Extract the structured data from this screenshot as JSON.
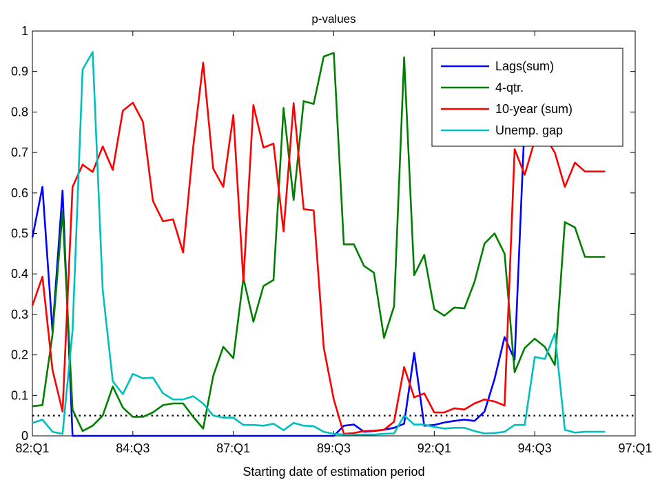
{
  "chart_data": {
    "type": "line",
    "title": "p-values",
    "xlabel": "Starting date of estimation period",
    "ylabel": "",
    "x_tick_labels": [
      "82:Q1",
      "84:Q3",
      "87:Q1",
      "89:Q3",
      "92:Q1",
      "94:Q3",
      "97:Q1"
    ],
    "x_tick_values": [
      0,
      10,
      20,
      30,
      40,
      50,
      60
    ],
    "xlim": [
      0,
      60
    ],
    "y_tick_labels": [
      "0",
      "0.1",
      "0.2",
      "0.3",
      "0.4",
      "0.5",
      "0.6",
      "0.7",
      "0.8",
      "0.9",
      "1"
    ],
    "ylim": [
      0,
      1
    ],
    "grid": false,
    "legend_position": "top-right",
    "reference_line": {
      "y": 0.05,
      "style": "dotted",
      "color": "#000000"
    },
    "series": [
      {
        "name": "Lags(sum)",
        "color": "#0000ff",
        "x": [
          0,
          1,
          2,
          3,
          4,
          5,
          6,
          7,
          8,
          9,
          10,
          11,
          12,
          13,
          14,
          15,
          16,
          17,
          18,
          19,
          20,
          21,
          22,
          23,
          24,
          25,
          26,
          27,
          28,
          29,
          30,
          31,
          32,
          33,
          34,
          35,
          36,
          37,
          38,
          39,
          40,
          41,
          42,
          43,
          44,
          45,
          46,
          47,
          48,
          49,
          50,
          51,
          52,
          53,
          54,
          55,
          56,
          57
        ],
        "values": [
          0.49,
          0.615,
          0.258,
          0.606,
          0,
          0,
          0,
          0,
          0,
          0,
          0,
          0,
          0,
          0,
          0,
          0,
          0,
          0,
          0,
          0,
          0,
          0,
          0,
          0,
          0,
          0,
          0,
          0,
          0,
          0,
          0,
          0.025,
          0.028,
          0.01,
          0.012,
          0.015,
          0.02,
          0.03,
          0.205,
          0.025,
          0.027,
          0.033,
          0.037,
          0.04,
          0.037,
          0.06,
          0.14,
          0.244,
          0.188,
          0.78,
          0.75,
          0.76,
          0.76,
          0.75,
          0.72,
          0.73,
          0.73,
          0.73
        ]
      },
      {
        "name": "4-qtr.",
        "color": "#007f00",
        "x": [
          0,
          1,
          2,
          3,
          4,
          5,
          6,
          7,
          8,
          9,
          10,
          11,
          12,
          13,
          14,
          15,
          16,
          17,
          18,
          19,
          20,
          21,
          22,
          23,
          24,
          25,
          26,
          27,
          28,
          29,
          30,
          31,
          32,
          33,
          34,
          35,
          36,
          37,
          38,
          39,
          40,
          41,
          42,
          43,
          44,
          45,
          46,
          47,
          48,
          49,
          50,
          51,
          52,
          53,
          54,
          55,
          56,
          57
        ],
        "values": [
          0.073,
          0.076,
          0.25,
          0.555,
          0.065,
          0.012,
          0.025,
          0.05,
          0.122,
          0.07,
          0.047,
          0.047,
          0.058,
          0.076,
          0.08,
          0.08,
          0.047,
          0.018,
          0.148,
          0.22,
          0.192,
          0.39,
          0.282,
          0.37,
          0.385,
          0.81,
          0.583,
          0.827,
          0.82,
          0.937,
          0.946,
          0.473,
          0.473,
          0.42,
          0.403,
          0.242,
          0.32,
          0.935,
          0.397,
          0.447,
          0.313,
          0.297,
          0.317,
          0.315,
          0.38,
          0.475,
          0.5,
          0.45,
          0.157,
          0.217,
          0.24,
          0.22,
          0.175,
          0.528,
          0.515,
          0.442,
          0.442,
          0.442
        ]
      },
      {
        "name": "10-year (sum)",
        "color": "#ff0000",
        "x": [
          0,
          1,
          2,
          3,
          4,
          5,
          6,
          7,
          8,
          9,
          10,
          11,
          12,
          13,
          14,
          15,
          16,
          17,
          18,
          19,
          20,
          21,
          22,
          23,
          24,
          25,
          26,
          27,
          28,
          29,
          30,
          31,
          32,
          33,
          34,
          35,
          36,
          37,
          38,
          39,
          40,
          41,
          42,
          43,
          44,
          45,
          46,
          47,
          48,
          49,
          50,
          51,
          52,
          53,
          54,
          55,
          56,
          57
        ],
        "values": [
          0.322,
          0.393,
          0.163,
          0.06,
          0.615,
          0.67,
          0.652,
          0.715,
          0.657,
          0.803,
          0.823,
          0.776,
          0.58,
          0.53,
          0.535,
          0.453,
          0.712,
          0.922,
          0.66,
          0.615,
          0.793,
          0.382,
          0.817,
          0.712,
          0.722,
          0.505,
          0.822,
          0.56,
          0.557,
          0.218,
          0.09,
          0.005,
          0.007,
          0.012,
          0.013,
          0.015,
          0.035,
          0.17,
          0.095,
          0.105,
          0.058,
          0.058,
          0.068,
          0.065,
          0.08,
          0.09,
          0.085,
          0.075,
          0.708,
          0.645,
          0.73,
          0.74,
          0.7,
          0.615,
          0.675,
          0.653,
          0.653,
          0.653
        ]
      },
      {
        "name": "Unemp. gap",
        "color": "#00bfbf",
        "x": [
          0,
          1,
          2,
          3,
          4,
          5,
          6,
          7,
          8,
          9,
          10,
          11,
          12,
          13,
          14,
          15,
          16,
          17,
          18,
          19,
          20,
          21,
          22,
          23,
          24,
          25,
          26,
          27,
          28,
          29,
          30,
          31,
          32,
          33,
          34,
          35,
          36,
          37,
          38,
          39,
          40,
          41,
          42,
          43,
          44,
          45,
          46,
          47,
          48,
          49,
          50,
          51,
          52,
          53,
          54,
          55,
          56,
          57
        ],
        "values": [
          0.032,
          0.04,
          0.01,
          0.005,
          0.26,
          0.905,
          0.948,
          0.36,
          0.135,
          0.103,
          0.153,
          0.142,
          0.144,
          0.105,
          0.09,
          0.09,
          0.098,
          0.08,
          0.05,
          0.045,
          0.045,
          0.027,
          0.027,
          0.025,
          0.03,
          0.014,
          0.032,
          0.025,
          0.024,
          0.01,
          0.005,
          0.003,
          0.003,
          0.003,
          0.003,
          0.005,
          0.006,
          0.05,
          0.028,
          0.028,
          0.022,
          0.018,
          0.02,
          0.02,
          0.012,
          0.006,
          0.007,
          0.01,
          0.027,
          0.027,
          0.195,
          0.19,
          0.253,
          0.015,
          0.008,
          0.01,
          0.01,
          0.01
        ]
      }
    ]
  }
}
